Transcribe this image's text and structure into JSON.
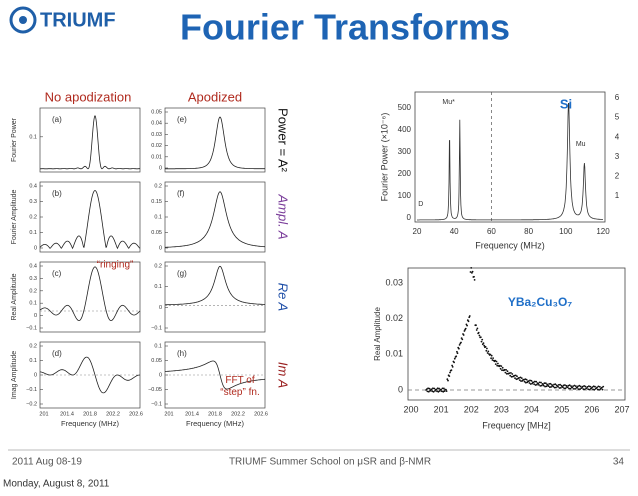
{
  "header": {
    "logo": "TRIUMF",
    "title": "Fourier Transforms"
  },
  "left_figure": {
    "column_titles": [
      "No apodization",
      "Apodized"
    ],
    "row_labels": [
      "Power = A²",
      "Ampl. A",
      "Re A",
      "Im A"
    ],
    "y_labels": [
      "Fourier Power",
      "Fourier Amplitude",
      "Real Amplitude",
      "Imag Amplitude"
    ],
    "panels": [
      {
        "label": "(a)",
        "yticks": [
          "0.1"
        ]
      },
      {
        "label": "(b)",
        "yticks": [
          "0.4",
          "0.3",
          "0.2",
          "0.1",
          "0"
        ]
      },
      {
        "label": "(c)",
        "yticks": [
          "0.4",
          "0.3",
          "0.2",
          "0.1",
          "0",
          "−0.1"
        ]
      },
      {
        "label": "(d)",
        "yticks": [
          "0.2",
          "0.1",
          "0",
          "−0.1",
          "−0.2"
        ]
      },
      {
        "label": "(e)",
        "yticks": [
          "0.05",
          "0.04",
          "0.03",
          "0.02",
          "0.01",
          "0"
        ]
      },
      {
        "label": "(f)",
        "yticks": [
          "0.2",
          "0.15",
          "0.1",
          "0.05",
          "0"
        ]
      },
      {
        "label": "(g)",
        "yticks": [
          "0.2",
          "0.1",
          "0",
          "−0.1"
        ]
      },
      {
        "label": "(h)",
        "yticks": [
          "0.1",
          "0.05",
          "0",
          "−0.05",
          "−0.1"
        ]
      }
    ],
    "xticks": [
      "201",
      "201.4",
      "201.8",
      "202.2",
      "202.6"
    ],
    "x_label": "Frequency (MHz)",
    "annotations": [
      "“ringing”",
      "FFT of “step” fn."
    ]
  },
  "si_figure": {
    "label": "Si",
    "peak_labels": [
      "Mu*",
      "Mu",
      "D"
    ],
    "y_label": "Fourier Power (×10⁻⁶)",
    "yticks": [
      "0",
      "100",
      "200",
      "300",
      "400",
      "500"
    ],
    "y2ticks": [
      "1",
      "2",
      "3",
      "4",
      "5",
      "6"
    ],
    "xticks": [
      "20",
      "40",
      "60",
      "80",
      "100",
      "120"
    ],
    "x_label": "Frequency (MHz)"
  },
  "ybco_figure": {
    "label": "YBa₂Cu₃O₇",
    "y_label": "Real Amplitude",
    "yticks": [
      "0",
      "0.01",
      "0.02",
      "0.03"
    ],
    "xticks": [
      "200",
      "201",
      "202",
      "203",
      "204",
      "205",
      "206",
      "207"
    ],
    "x_label": "Frequency [MHz]"
  },
  "footer": {
    "date_range": "2011 Aug 08-19",
    "event": "TRIUMF Summer School on μSR and β-NMR",
    "page": "34",
    "date": "Monday, August 8, 2011"
  }
}
